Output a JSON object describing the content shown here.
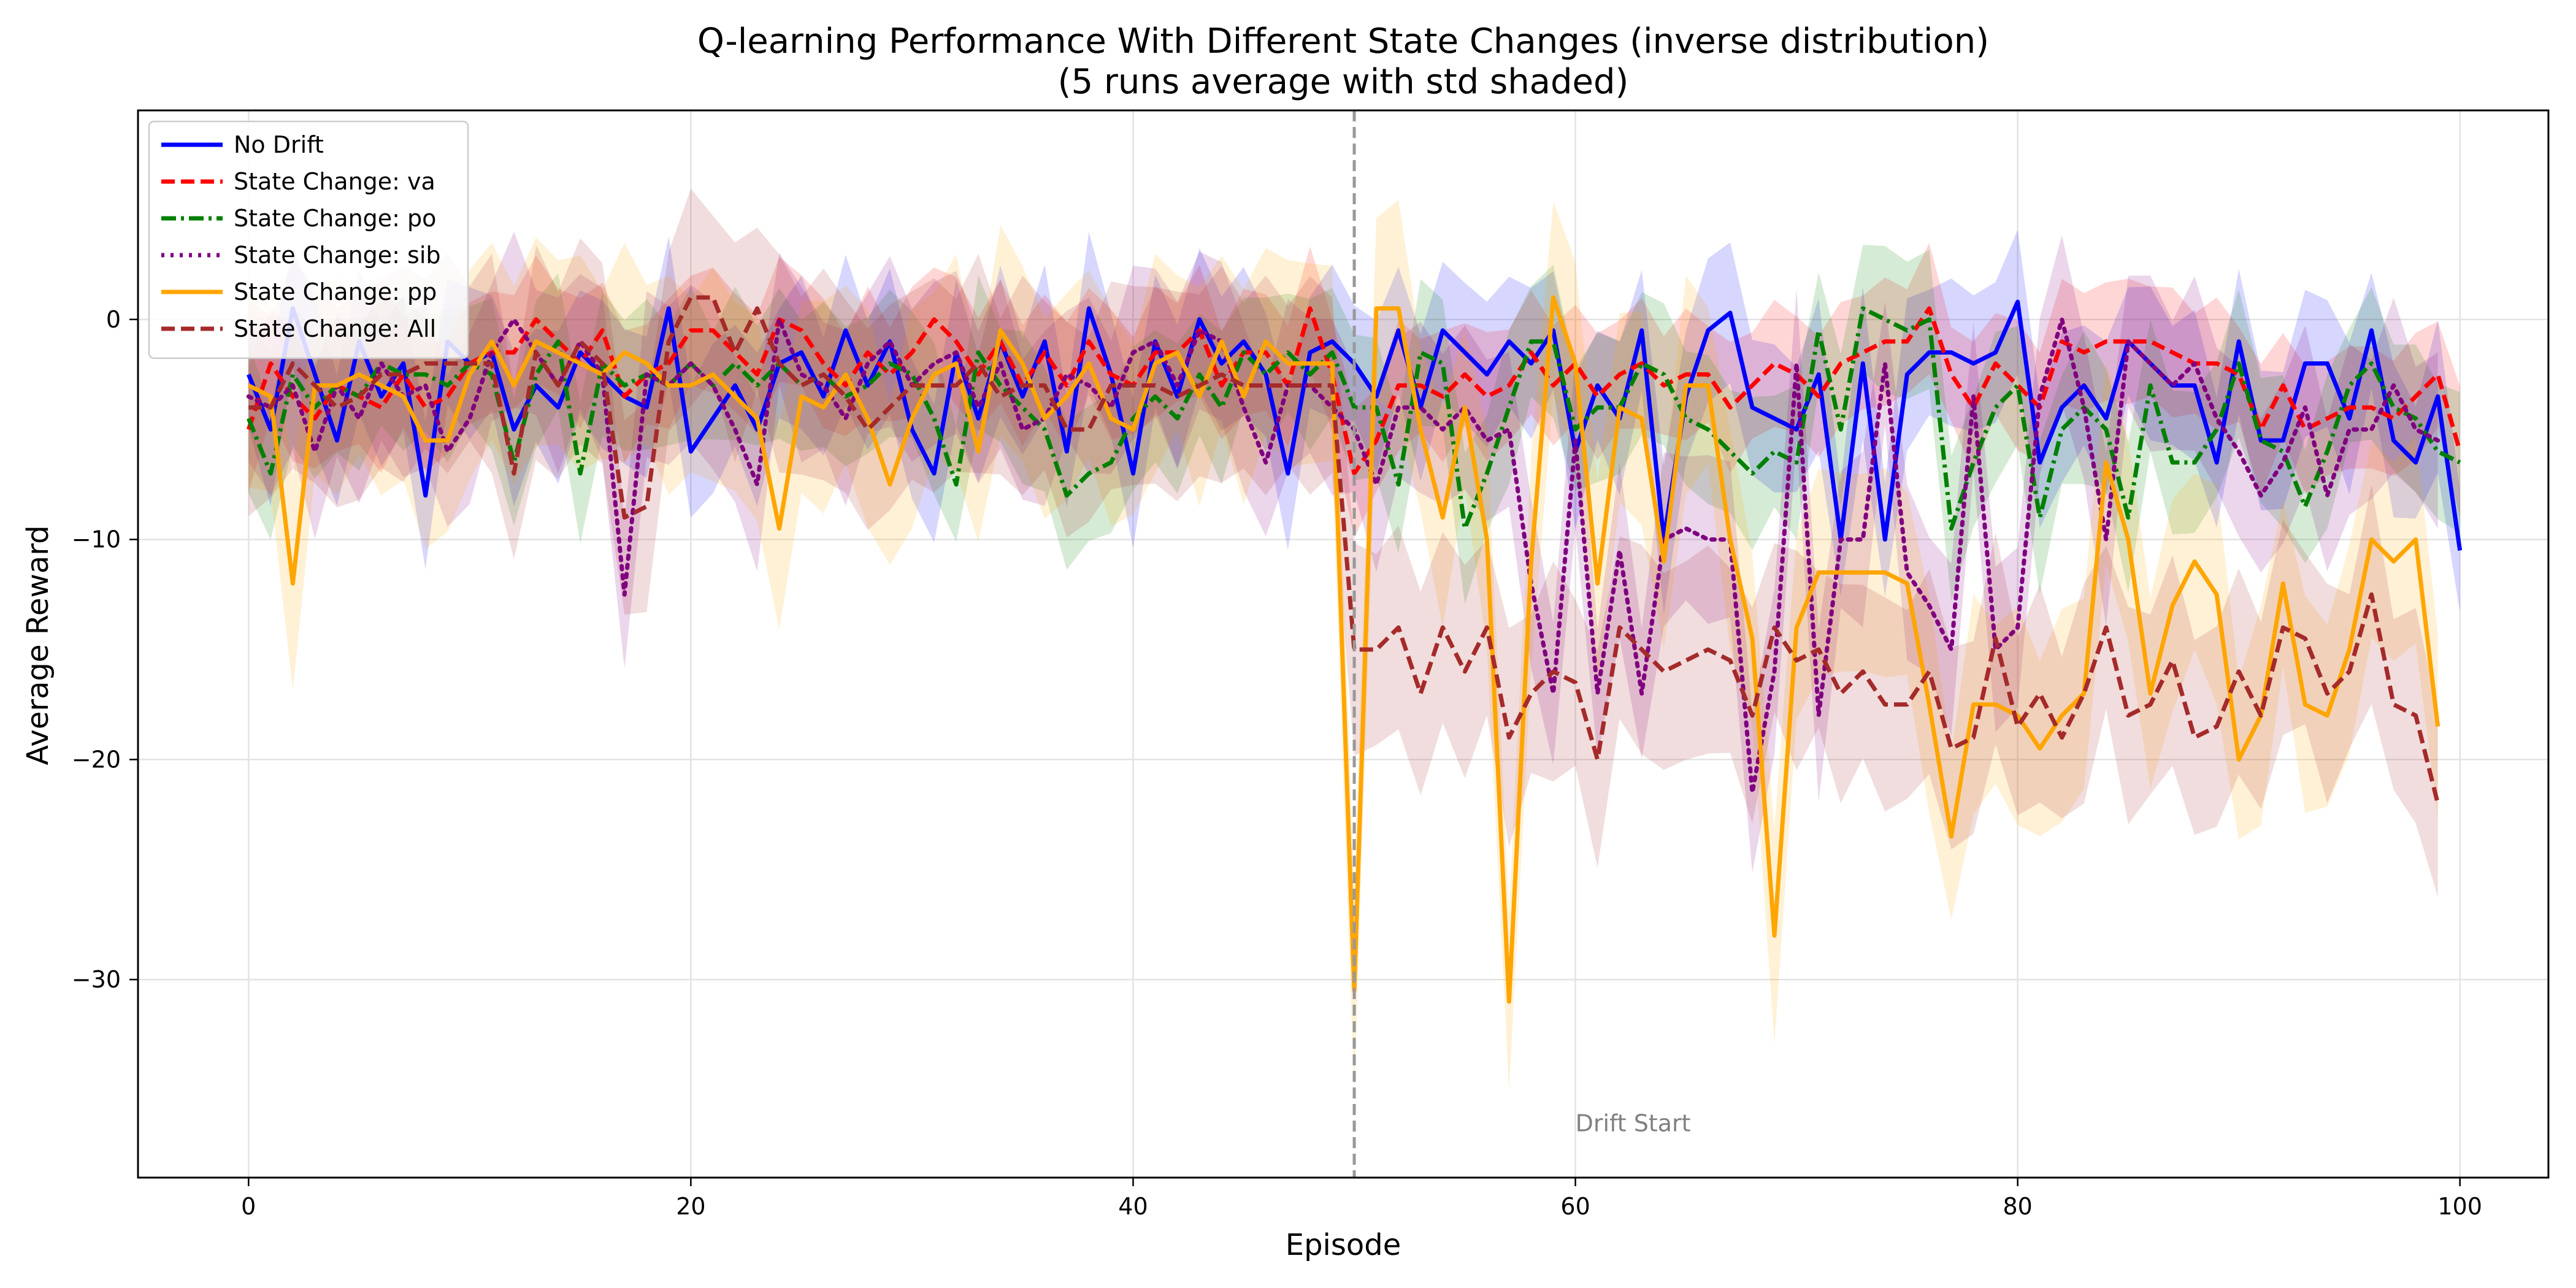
{
  "chart_data": {
    "type": "line",
    "title": "Q-learning Performance With Different State Changes (inverse distribution)",
    "subtitle": "(5 runs average with std shaded)",
    "xlabel": "Episode",
    "ylabel": "Average Reward",
    "xlim": [
      -5,
      104
    ],
    "ylim": [
      -39,
      9.5
    ],
    "xticks": [
      0,
      20,
      40,
      60,
      80,
      100
    ],
    "yticks": [
      0,
      -10,
      -20,
      -30
    ],
    "grid": true,
    "legend_position": "top-left",
    "vline": {
      "x": 50,
      "color": "#999999",
      "style": "dashed"
    },
    "annotation": {
      "text": "Drift Start",
      "x": 60,
      "y": -36.5
    },
    "series": [
      {
        "name": "No Drift",
        "color": "#0000ff",
        "dash": "solid",
        "std": 3.5,
        "values": [
          -2.5,
          -5,
          0.5,
          -2.5,
          -5.5,
          -1,
          -3.5,
          -2,
          -8,
          -1,
          -2,
          -1.5,
          -5,
          -3,
          -4,
          -1.5,
          -2.5,
          -3.5,
          -4,
          0.5,
          -6,
          -4.5,
          -3,
          -5,
          -2,
          -1.5,
          -3.5,
          -0.5,
          -3,
          -1,
          -5,
          -7,
          -1.5,
          -4.5,
          -1,
          -3.5,
          -1,
          -6,
          0.5,
          -2.5,
          -7,
          -1,
          -3.5,
          0,
          -2,
          -1,
          -2.5,
          -7,
          -1.5,
          -1,
          -2,
          -3.5,
          -0.5,
          -4,
          -0.5,
          -1.5,
          -2.5,
          -1,
          -2,
          -0.5,
          -6,
          -3,
          -4.5,
          -0.5,
          -10,
          -3.5,
          -0.5,
          0.3,
          -4,
          -4.5,
          -5,
          -2.5,
          -10,
          -2,
          -10,
          -2.5,
          -1.5,
          -1.5,
          -2,
          -1.5,
          0.8,
          -6.5,
          -4,
          -3,
          -4.5,
          -1,
          -2,
          -3,
          -3,
          -6.5,
          -1,
          -5.5,
          -5.5,
          -2,
          -2,
          -4.5,
          -0.5,
          -5.5,
          -6.5,
          -3.5,
          -10.5
        ]
      },
      {
        "name": "State Change: va",
        "color": "#ff0000",
        "dash": "dashed",
        "std": 3,
        "values": [
          -5,
          -2,
          -3.5,
          -4.5,
          -3,
          -3.5,
          -4,
          -2.5,
          -4,
          -3.5,
          -2,
          -1.5,
          -1.5,
          0,
          -1,
          -2,
          -0.5,
          -3.5,
          -2.5,
          -2,
          -0.5,
          -0.5,
          -1.5,
          -2.5,
          0,
          -0.5,
          -2,
          -3,
          -1.5,
          -2.5,
          -1.5,
          0,
          -1,
          -2.5,
          -1,
          -3,
          -1.5,
          -3,
          -1,
          -2.5,
          -3,
          -1.5,
          -1.5,
          -0.5,
          -3,
          -1.5,
          -1.5,
          -3,
          0.5,
          -2.5,
          -7,
          -5.5,
          -3,
          -3,
          -3.5,
          -2.5,
          -3.5,
          -3,
          -1.5,
          -3,
          -2,
          -3.5,
          -2.5,
          -2,
          -3,
          -2.5,
          -2.5,
          -4,
          -3,
          -2,
          -2.5,
          -3.5,
          -2,
          -1.5,
          -1,
          -1,
          0.5,
          -2.5,
          -4,
          -2,
          -3,
          -4,
          -1,
          -1.5,
          -1,
          -1,
          -1,
          -1.5,
          -2,
          -2,
          -2.5,
          -5,
          -3,
          -5,
          -4.5,
          -4,
          -4,
          -4.5,
          -3.5,
          -2.5,
          -6
        ]
      },
      {
        "name": "State Change: po",
        "color": "#008000",
        "dash": "dashdot",
        "std": 3.5,
        "values": [
          -4.5,
          -7,
          -2.5,
          -4,
          -3,
          -3.5,
          -2,
          -2.5,
          -2.5,
          -3,
          -2,
          -2.5,
          -6.5,
          -2.5,
          -1,
          -7,
          -2,
          -3,
          -2.5,
          -3,
          -2,
          -3,
          -2,
          -3,
          -2,
          -3,
          -2.5,
          -3.5,
          -3,
          -2,
          -2.5,
          -4.5,
          -7.5,
          -1.5,
          -3,
          -4,
          -5,
          -8,
          -7,
          -6.5,
          -4.5,
          -3.5,
          -4.5,
          -2.5,
          -4,
          -1.5,
          -2.5,
          -1.5,
          -2.5,
          -1.5,
          -4,
          -4,
          -7.5,
          -1.5,
          -2,
          -9.5,
          -7,
          -4,
          -1,
          -1,
          -5,
          -4,
          -4,
          -2,
          -2.5,
          -4.5,
          -5,
          -6,
          -7,
          -6,
          -6.5,
          -0.5,
          -5,
          0.5,
          0,
          -0.5,
          0,
          -9.5,
          -6.5,
          -4,
          -3,
          -9,
          -5,
          -4,
          -5,
          -9,
          -3,
          -6.5,
          -6.5,
          -5,
          -2,
          -5.5,
          -6,
          -8.5,
          -6,
          -3,
          -2,
          -4,
          -4.5,
          -6,
          -6.5
        ]
      },
      {
        "name": "State Change: sib",
        "color": "#800080",
        "dash": "dotted",
        "std": 4,
        "values": [
          -3.5,
          -4,
          -3,
          -6,
          -3,
          -4.5,
          -2,
          -3.5,
          -3,
          -6,
          -4.5,
          -1.5,
          0,
          -1.5,
          -3,
          -1,
          -2.5,
          -12.5,
          -2.5,
          -3,
          -2,
          -3,
          -5,
          -7.5,
          0,
          -2.5,
          -3,
          -4.5,
          -2,
          -1,
          -3,
          -2,
          -1.5,
          -4,
          -2,
          -5,
          -4.5,
          -2.5,
          -3,
          -4,
          -1.5,
          -1,
          -3,
          -0.5,
          -1,
          -4,
          -6.5,
          -3,
          -3,
          -4,
          -5,
          -7.5,
          -4,
          -4,
          -5,
          -4,
          -5.5,
          -5,
          -12,
          -17,
          -5.5,
          -17,
          -10.5,
          -17,
          -10,
          -9.5,
          -10,
          -10,
          -21.5,
          -16,
          -2,
          -18,
          -10,
          -10,
          -2,
          -11.5,
          -13,
          -15,
          -3.5,
          -15,
          -14,
          -3.5,
          0,
          -4,
          -10,
          -1,
          -2,
          -3,
          -2,
          -4.5,
          -6,
          -8,
          -6.5,
          -4,
          -8,
          -5,
          -5,
          -3,
          -5,
          -5.5
        ]
      },
      {
        "name": "State Change: pp",
        "color": "#ffa500",
        "dash": "solid",
        "std": 5,
        "values": [
          -3,
          -3.5,
          -12,
          -3,
          -3,
          -2.5,
          -3,
          -3.5,
          -5.5,
          -5.5,
          -2.5,
          -1,
          -3,
          -1,
          -1.5,
          -2,
          -2.5,
          -1.5,
          -2,
          -3,
          -3,
          -2.5,
          -3.5,
          -4.5,
          -9.5,
          -3.5,
          -4,
          -2.5,
          -4.5,
          -7.5,
          -4.5,
          -2.5,
          -2,
          -6,
          -0.5,
          -2,
          -4.5,
          -3.5,
          -2,
          -4.5,
          -5,
          -2,
          -1.5,
          -3.5,
          -1,
          -3.5,
          -1,
          -2,
          -2,
          -2,
          -30.5,
          0.5,
          0.5,
          -5,
          -9,
          -4,
          -10,
          -31,
          -11,
          1,
          -2,
          -12,
          -4,
          -4.5,
          -11,
          -3,
          -3,
          -10,
          -14.5,
          -28,
          -14,
          -11.5,
          -11.5,
          -11.5,
          -11.5,
          -12,
          -17.5,
          -23.5,
          -17.5,
          -17.5,
          -18,
          -19.5,
          -18,
          -17,
          -6.5,
          -10,
          -17,
          -13,
          -11,
          -12.5,
          -20,
          -18,
          -12,
          -17.5,
          -18,
          -15,
          -10,
          -11,
          -10,
          -18.5
        ]
      },
      {
        "name": "State Change: All",
        "color": "#a52a2a",
        "dash": "dashed",
        "std": 5,
        "values": [
          -4,
          -4,
          -2,
          -3,
          -4,
          -3.5,
          -2.5,
          -2.5,
          -2,
          -2,
          -2,
          -2,
          -7,
          -1.5,
          -3,
          -1,
          -2,
          -9,
          -8.5,
          -1,
          1,
          1,
          -1.5,
          0.5,
          -2,
          -3,
          -2.5,
          -3.5,
          -5,
          -4,
          -3,
          -3,
          -3,
          -2,
          -3.5,
          -3,
          -3,
          -5,
          -5,
          -3,
          -3,
          -3,
          -3.5,
          -3,
          -2.5,
          -3,
          -3,
          -3,
          -3,
          -3,
          -15,
          -15,
          -14,
          -17,
          -14,
          -16,
          -14,
          -19,
          -17,
          -16,
          -16.5,
          -20,
          -14,
          -15,
          -16,
          -15.5,
          -15,
          -15.5,
          -18,
          -14,
          -15.5,
          -15,
          -17,
          -16,
          -17.5,
          -17.5,
          -16,
          -19.5,
          -19,
          -14.5,
          -18.5,
          -17,
          -19,
          -17,
          -14,
          -18,
          -17.5,
          -15.5,
          -19,
          -18.5,
          -16,
          -18,
          -14,
          -14.5,
          -17,
          -16,
          -12.5,
          -17.5,
          -18,
          -22
        ]
      }
    ]
  }
}
